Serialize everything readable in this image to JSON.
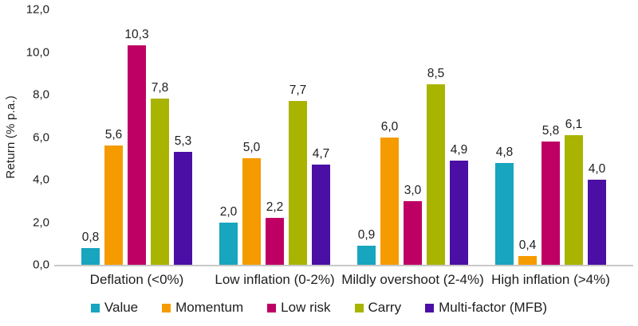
{
  "chart_data": {
    "type": "bar",
    "categories": [
      "Deflation (<0%)",
      "Low inflation (0-2%)",
      "Mildly overshoot (2-4%)",
      "High inflation (>4%)"
    ],
    "series": [
      {
        "name": "Value",
        "color": "#17A5BF",
        "values": [
          0.8,
          2.0,
          0.9,
          4.8
        ]
      },
      {
        "name": "Momentum",
        "color": "#F59B00",
        "values": [
          5.6,
          5.0,
          6.0,
          0.4
        ]
      },
      {
        "name": "Low risk",
        "color": "#BE0064",
        "values": [
          10.3,
          2.2,
          3.0,
          5.8
        ]
      },
      {
        "name": "Carry",
        "color": "#A9B400",
        "values": [
          7.8,
          7.7,
          8.5,
          6.1
        ]
      },
      {
        "name": "Multi-factor (MFB)",
        "color": "#4B0FA5",
        "values": [
          5.3,
          4.7,
          4.9,
          4.0
        ]
      }
    ],
    "title": "",
    "xlabel": "",
    "ylabel": "Return (% p.a.)",
    "yticks": [
      "12,0",
      "10,0",
      "8,0",
      "6,0",
      "4,0",
      "2,0",
      "0,0"
    ],
    "ylim": [
      0,
      12
    ],
    "decimal_separator": ",",
    "grid": false,
    "legend_position": "bottom",
    "axis_line_color": "#c9c9c9",
    "text_color": "#1e1e1e"
  }
}
